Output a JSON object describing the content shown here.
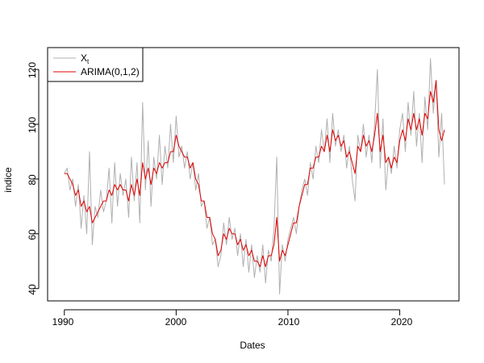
{
  "chart_data": {
    "type": "line",
    "title": "",
    "xlabel": "Dates",
    "ylabel": "indice",
    "xlim": [
      1988.5,
      2025.3
    ],
    "ylim": [
      35.5,
      128
    ],
    "x_ticks": [
      "1990",
      "2000",
      "2010",
      "2020"
    ],
    "y_ticks": [
      "40",
      "60",
      "80",
      "100",
      "120"
    ],
    "legend_position": "top-left",
    "grid": false,
    "series": [
      {
        "name": "X",
        "name_subscript": "t",
        "color": "#b0b0b0",
        "points": [
          [
            1990.0,
            82
          ],
          [
            1990.25,
            84
          ],
          [
            1990.5,
            76
          ],
          [
            1990.75,
            80
          ],
          [
            1991.0,
            70
          ],
          [
            1991.25,
            78
          ],
          [
            1991.5,
            62
          ],
          [
            1991.75,
            74
          ],
          [
            1992.0,
            60
          ],
          [
            1992.25,
            90
          ],
          [
            1992.5,
            56
          ],
          [
            1992.75,
            70
          ],
          [
            1993.0,
            66
          ],
          [
            1993.25,
            76
          ],
          [
            1993.5,
            68
          ],
          [
            1993.75,
            72
          ],
          [
            1994.0,
            84
          ],
          [
            1994.25,
            64
          ],
          [
            1994.5,
            86
          ],
          [
            1994.75,
            70
          ],
          [
            1995.0,
            82
          ],
          [
            1995.25,
            74
          ],
          [
            1995.5,
            80
          ],
          [
            1995.75,
            66
          ],
          [
            1996.0,
            88
          ],
          [
            1996.25,
            72
          ],
          [
            1996.5,
            86
          ],
          [
            1996.75,
            64
          ],
          [
            1997.0,
            108
          ],
          [
            1997.25,
            76
          ],
          [
            1997.5,
            94
          ],
          [
            1997.75,
            70
          ],
          [
            1998.0,
            88
          ],
          [
            1998.25,
            80
          ],
          [
            1998.5,
            96
          ],
          [
            1998.75,
            78
          ],
          [
            1999.0,
            92
          ],
          [
            1999.25,
            84
          ],
          [
            1999.5,
            100
          ],
          [
            1999.75,
            86
          ],
          [
            2000.0,
            103
          ],
          [
            2000.25,
            88
          ],
          [
            2000.5,
            92
          ],
          [
            2000.75,
            84
          ],
          [
            2001.0,
            90
          ],
          [
            2001.25,
            80
          ],
          [
            2001.5,
            86
          ],
          [
            2001.75,
            76
          ],
          [
            2002.0,
            82
          ],
          [
            2002.25,
            70
          ],
          [
            2002.5,
            72
          ],
          [
            2002.75,
            62
          ],
          [
            2003.0,
            66
          ],
          [
            2003.25,
            56
          ],
          [
            2003.5,
            58
          ],
          [
            2003.75,
            48
          ],
          [
            2004.0,
            52
          ],
          [
            2004.25,
            64
          ],
          [
            2004.5,
            56
          ],
          [
            2004.75,
            66
          ],
          [
            2005.0,
            58
          ],
          [
            2005.25,
            62
          ],
          [
            2005.5,
            52
          ],
          [
            2005.75,
            60
          ],
          [
            2006.0,
            48
          ],
          [
            2006.25,
            58
          ],
          [
            2006.5,
            46
          ],
          [
            2006.75,
            56
          ],
          [
            2007.0,
            44
          ],
          [
            2007.25,
            52
          ],
          [
            2007.5,
            46
          ],
          [
            2007.75,
            56
          ],
          [
            2008.0,
            42
          ],
          [
            2008.25,
            54
          ],
          [
            2008.5,
            50
          ],
          [
            2008.75,
            62
          ],
          [
            2009.0,
            88
          ],
          [
            2009.25,
            38
          ],
          [
            2009.5,
            56
          ],
          [
            2009.75,
            50
          ],
          [
            2010.0,
            58
          ],
          [
            2010.25,
            62
          ],
          [
            2010.5,
            66
          ],
          [
            2010.75,
            60
          ],
          [
            2011.0,
            70
          ],
          [
            2011.25,
            76
          ],
          [
            2011.5,
            80
          ],
          [
            2011.75,
            74
          ],
          [
            2012.0,
            86
          ],
          [
            2012.25,
            80
          ],
          [
            2012.5,
            92
          ],
          [
            2012.75,
            86
          ],
          [
            2013.0,
            98
          ],
          [
            2013.25,
            90
          ],
          [
            2013.5,
            102
          ],
          [
            2013.75,
            86
          ],
          [
            2014.0,
            104
          ],
          [
            2014.25,
            92
          ],
          [
            2014.5,
            98
          ],
          [
            2014.75,
            90
          ],
          [
            2015.0,
            96
          ],
          [
            2015.25,
            84
          ],
          [
            2015.5,
            92
          ],
          [
            2015.75,
            80
          ],
          [
            2016.0,
            72
          ],
          [
            2016.25,
            96
          ],
          [
            2016.5,
            90
          ],
          [
            2016.75,
            100
          ],
          [
            2017.0,
            88
          ],
          [
            2017.25,
            96
          ],
          [
            2017.5,
            86
          ],
          [
            2017.75,
            100
          ],
          [
            2018.0,
            120
          ],
          [
            2018.25,
            84
          ],
          [
            2018.5,
            102
          ],
          [
            2018.75,
            76
          ],
          [
            2019.0,
            88
          ],
          [
            2019.25,
            82
          ],
          [
            2019.5,
            92
          ],
          [
            2019.75,
            84
          ],
          [
            2020.0,
            98
          ],
          [
            2020.25,
            104
          ],
          [
            2020.5,
            90
          ],
          [
            2020.75,
            108
          ],
          [
            2021.0,
            96
          ],
          [
            2021.25,
            112
          ],
          [
            2021.5,
            92
          ],
          [
            2021.75,
            104
          ],
          [
            2022.0,
            86
          ],
          [
            2022.25,
            110
          ],
          [
            2022.5,
            98
          ],
          [
            2022.75,
            124
          ],
          [
            2023.0,
            104
          ],
          [
            2023.25,
            116
          ],
          [
            2023.5,
            88
          ],
          [
            2023.75,
            104
          ],
          [
            2024.0,
            78
          ]
        ]
      },
      {
        "name": "ARIMA(0,1,2)",
        "color": "#e00000",
        "points": [
          [
            1990.0,
            82
          ],
          [
            1990.25,
            82
          ],
          [
            1990.5,
            80
          ],
          [
            1990.75,
            78
          ],
          [
            1991.0,
            74
          ],
          [
            1991.25,
            76
          ],
          [
            1991.5,
            70
          ],
          [
            1991.75,
            72
          ],
          [
            1992.0,
            68
          ],
          [
            1992.25,
            70
          ],
          [
            1992.5,
            64
          ],
          [
            1992.75,
            66
          ],
          [
            1993.0,
            68
          ],
          [
            1993.25,
            70
          ],
          [
            1993.5,
            72
          ],
          [
            1993.75,
            72
          ],
          [
            1994.0,
            76
          ],
          [
            1994.25,
            74
          ],
          [
            1994.5,
            78
          ],
          [
            1994.75,
            76
          ],
          [
            1995.0,
            78
          ],
          [
            1995.25,
            76
          ],
          [
            1995.5,
            76
          ],
          [
            1995.75,
            72
          ],
          [
            1996.0,
            78
          ],
          [
            1996.25,
            74
          ],
          [
            1996.5,
            80
          ],
          [
            1996.75,
            74
          ],
          [
            1997.0,
            86
          ],
          [
            1997.25,
            80
          ],
          [
            1997.5,
            84
          ],
          [
            1997.75,
            78
          ],
          [
            1998.0,
            84
          ],
          [
            1998.25,
            82
          ],
          [
            1998.5,
            86
          ],
          [
            1998.75,
            84
          ],
          [
            1999.0,
            86
          ],
          [
            1999.25,
            86
          ],
          [
            1999.5,
            90
          ],
          [
            1999.75,
            90
          ],
          [
            2000.0,
            96
          ],
          [
            2000.25,
            92
          ],
          [
            2000.5,
            90
          ],
          [
            2000.75,
            88
          ],
          [
            2001.0,
            88
          ],
          [
            2001.25,
            84
          ],
          [
            2001.5,
            86
          ],
          [
            2001.75,
            80
          ],
          [
            2002.0,
            78
          ],
          [
            2002.25,
            72
          ],
          [
            2002.5,
            72
          ],
          [
            2002.75,
            66
          ],
          [
            2003.0,
            66
          ],
          [
            2003.25,
            60
          ],
          [
            2003.5,
            58
          ],
          [
            2003.75,
            52
          ],
          [
            2004.0,
            54
          ],
          [
            2004.25,
            60
          ],
          [
            2004.5,
            58
          ],
          [
            2004.75,
            62
          ],
          [
            2005.0,
            60
          ],
          [
            2005.25,
            60
          ],
          [
            2005.5,
            56
          ],
          [
            2005.75,
            58
          ],
          [
            2006.0,
            54
          ],
          [
            2006.25,
            56
          ],
          [
            2006.5,
            52
          ],
          [
            2006.75,
            54
          ],
          [
            2007.0,
            50
          ],
          [
            2007.25,
            50
          ],
          [
            2007.5,
            48
          ],
          [
            2007.75,
            52
          ],
          [
            2008.0,
            48
          ],
          [
            2008.25,
            52
          ],
          [
            2008.5,
            52
          ],
          [
            2008.75,
            56
          ],
          [
            2009.0,
            66
          ],
          [
            2009.25,
            50
          ],
          [
            2009.5,
            54
          ],
          [
            2009.75,
            52
          ],
          [
            2010.0,
            56
          ],
          [
            2010.25,
            60
          ],
          [
            2010.5,
            64
          ],
          [
            2010.75,
            64
          ],
          [
            2011.0,
            70
          ],
          [
            2011.25,
            74
          ],
          [
            2011.5,
            78
          ],
          [
            2011.75,
            78
          ],
          [
            2012.0,
            84
          ],
          [
            2012.25,
            84
          ],
          [
            2012.5,
            88
          ],
          [
            2012.75,
            88
          ],
          [
            2013.0,
            92
          ],
          [
            2013.25,
            90
          ],
          [
            2013.5,
            96
          ],
          [
            2013.75,
            90
          ],
          [
            2014.0,
            98
          ],
          [
            2014.25,
            94
          ],
          [
            2014.5,
            96
          ],
          [
            2014.75,
            92
          ],
          [
            2015.0,
            94
          ],
          [
            2015.25,
            88
          ],
          [
            2015.5,
            90
          ],
          [
            2015.75,
            86
          ],
          [
            2016.0,
            82
          ],
          [
            2016.25,
            92
          ],
          [
            2016.5,
            90
          ],
          [
            2016.75,
            96
          ],
          [
            2017.0,
            92
          ],
          [
            2017.25,
            94
          ],
          [
            2017.5,
            90
          ],
          [
            2017.75,
            96
          ],
          [
            2018.0,
            104
          ],
          [
            2018.25,
            90
          ],
          [
            2018.5,
            96
          ],
          [
            2018.75,
            86
          ],
          [
            2019.0,
            88
          ],
          [
            2019.25,
            84
          ],
          [
            2019.5,
            88
          ],
          [
            2019.75,
            86
          ],
          [
            2020.0,
            94
          ],
          [
            2020.25,
            98
          ],
          [
            2020.5,
            94
          ],
          [
            2020.75,
            102
          ],
          [
            2021.0,
            98
          ],
          [
            2021.25,
            104
          ],
          [
            2021.5,
            98
          ],
          [
            2021.75,
            102
          ],
          [
            2022.0,
            96
          ],
          [
            2022.25,
            104
          ],
          [
            2022.5,
            102
          ],
          [
            2022.75,
            112
          ],
          [
            2023.0,
            108
          ],
          [
            2023.25,
            116
          ],
          [
            2023.5,
            98
          ],
          [
            2023.75,
            94
          ],
          [
            2024.0,
            98
          ]
        ]
      }
    ]
  }
}
